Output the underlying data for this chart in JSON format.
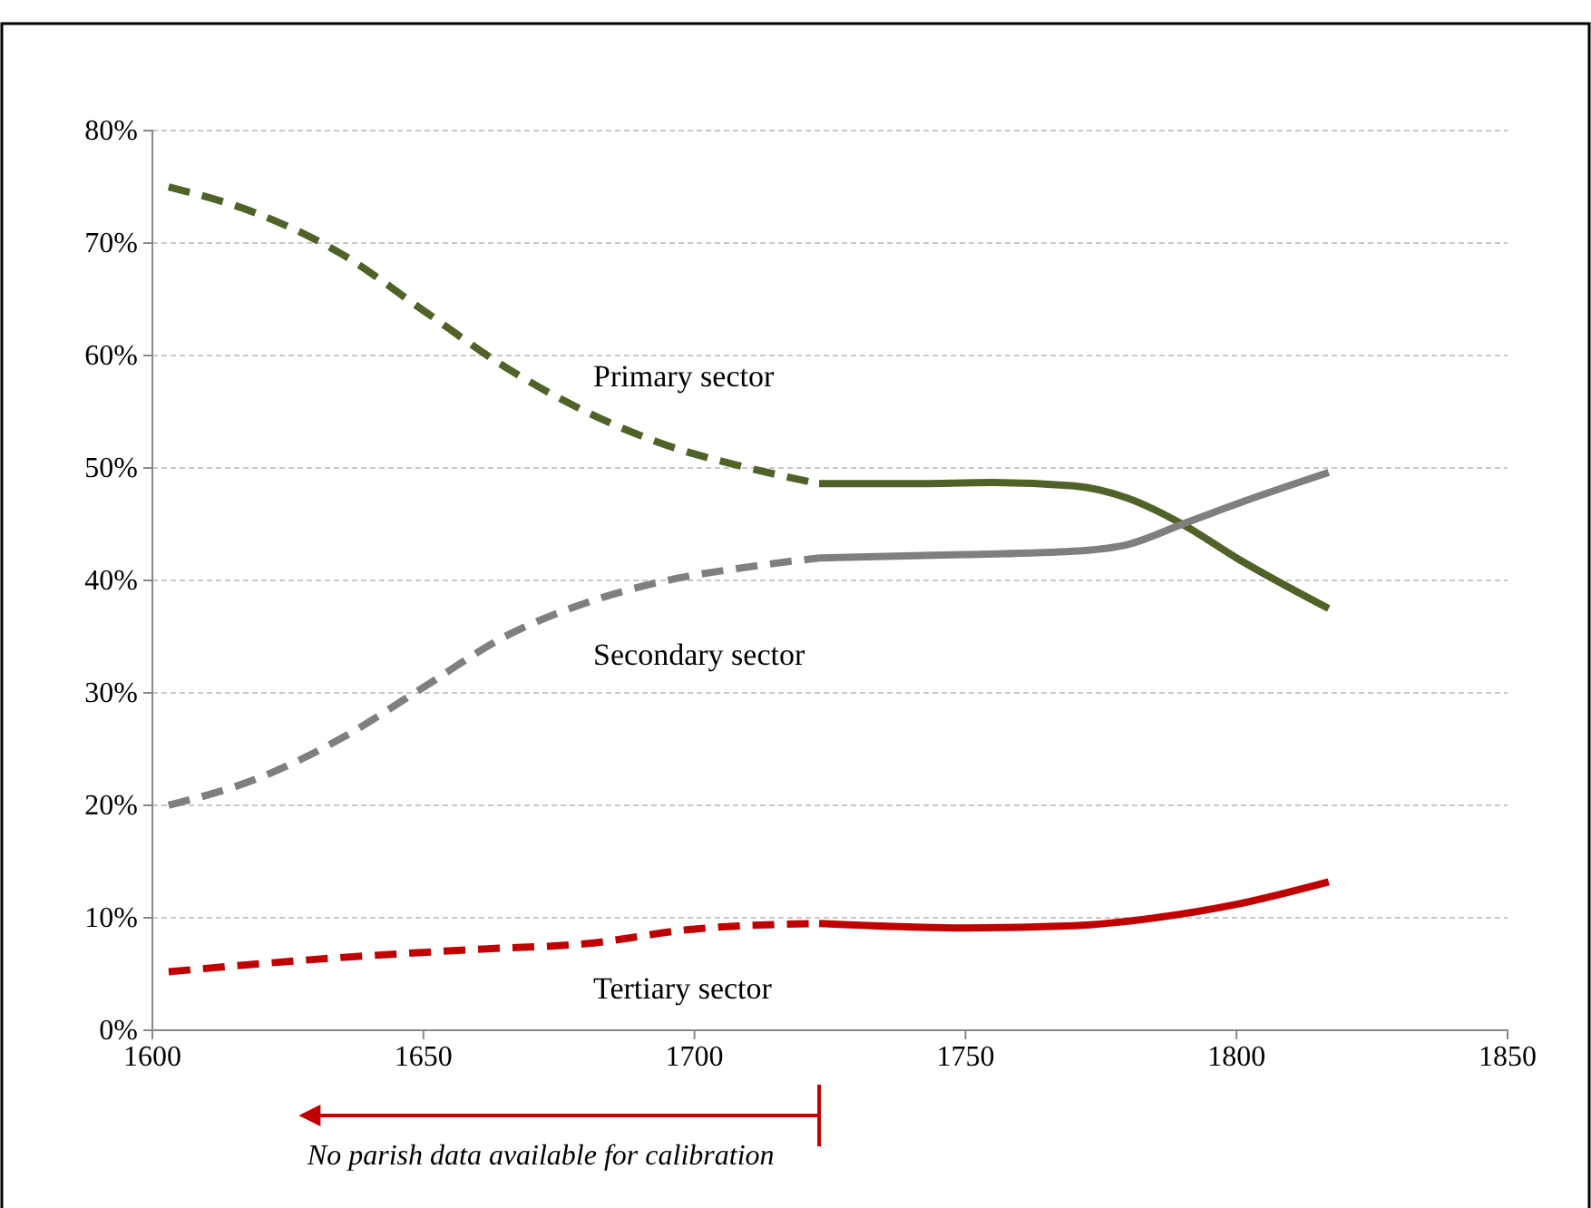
{
  "chart_data": {
    "type": "line",
    "xlim": [
      1600,
      1850
    ],
    "xticks": [
      1600,
      1650,
      1700,
      1750,
      1800,
      1850
    ],
    "ylim": [
      0,
      80
    ],
    "yticks": [
      {
        "value": 0,
        "label": "0%"
      },
      {
        "value": 10,
        "label": "10%"
      },
      {
        "value": 20,
        "label": "20%"
      },
      {
        "value": 30,
        "label": "30%"
      },
      {
        "value": 40,
        "label": "40%"
      },
      {
        "value": 50,
        "label": "50%"
      },
      {
        "value": 60,
        "label": "60%"
      },
      {
        "value": 70,
        "label": "70%"
      },
      {
        "value": 80,
        "label": "80%"
      }
    ],
    "grid": "y",
    "legend": false,
    "marker": "none",
    "series": [
      {
        "name": "Primary sector",
        "color": "#4f6228",
        "line_style": "dashed",
        "x": [
          1603,
          1620,
          1635,
          1650,
          1665,
          1680,
          1695,
          1710,
          1723
        ],
        "values": [
          75,
          72.5,
          69,
          64,
          59,
          55,
          52,
          50,
          48.6
        ]
      },
      {
        "color": "#4f6228",
        "line_style": "solid",
        "x": [
          1723,
          1740,
          1755,
          1770,
          1780,
          1790,
          1800,
          1817
        ],
        "values": [
          48.6,
          48.6,
          48.7,
          48.4,
          47.3,
          45,
          42,
          37.5
        ]
      },
      {
        "name": "Secondary sector",
        "color": "#7f7f7f",
        "line_style": "dashed",
        "x": [
          1603,
          1620,
          1635,
          1650,
          1665,
          1680,
          1695,
          1710,
          1723
        ],
        "values": [
          20,
          22.5,
          26,
          30.5,
          35,
          38,
          40,
          41.2,
          42
        ]
      },
      {
        "color": "#7f7f7f",
        "line_style": "solid",
        "x": [
          1723,
          1750,
          1770,
          1780,
          1790,
          1800,
          1817
        ],
        "values": [
          42,
          42.3,
          42.6,
          43.2,
          45,
          46.8,
          49.6
        ]
      },
      {
        "name": "Tertiary sector",
        "color": "#c00000",
        "line_style": "dashed",
        "x": [
          1603,
          1630,
          1660,
          1680,
          1700,
          1723
        ],
        "values": [
          5.2,
          6.3,
          7.2,
          7.7,
          9,
          9.5
        ]
      },
      {
        "color": "#c00000",
        "line_style": "solid",
        "x": [
          1723,
          1750,
          1770,
          1785,
          1800,
          1817
        ],
        "values": [
          9.5,
          9.1,
          9.3,
          10,
          11.2,
          13.2
        ]
      }
    ],
    "annotations": [
      "No parish data available for calibration"
    ]
  }
}
